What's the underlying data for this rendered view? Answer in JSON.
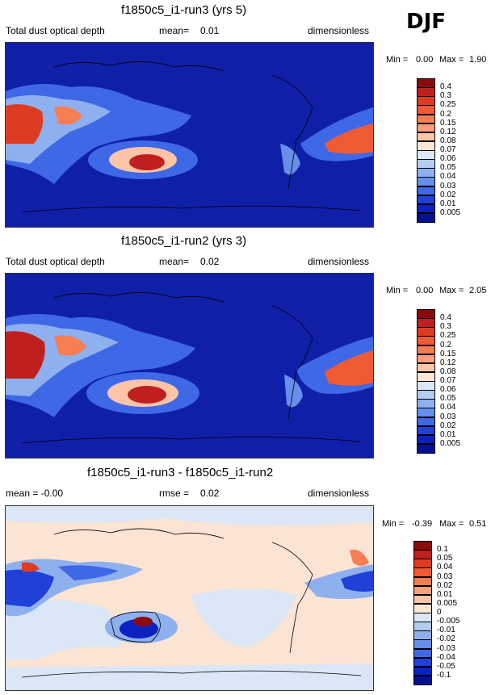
{
  "season": "DJF",
  "panels": [
    {
      "title": "f1850c5_i1-run3 (yrs 5)",
      "left_label": "Total dust optical depth",
      "mean_label": "mean=",
      "mean_value": "0.01",
      "units": "dimensionless",
      "min_label": "Min =",
      "min_value": "0.00",
      "max_label": "Max =",
      "max_value": "1.90",
      "colorbar": {
        "levels": [
          "0.4",
          "0.3",
          "0.25",
          "0.2",
          "0.15",
          "0.12",
          "0.08",
          "0.07",
          "0.06",
          "0.05",
          "0.04",
          "0.03",
          "0.02",
          "0.01",
          "0.005"
        ],
        "colors": [
          "#8b0a0a",
          "#c01f1f",
          "#de3c22",
          "#ee5b35",
          "#f57e52",
          "#fba07a",
          "#fcc5a8",
          "#fde5d6",
          "#dbe6f6",
          "#b5ccf2",
          "#8fb0ee",
          "#668eea",
          "#3f68e6",
          "#2040d8",
          "#0c22c0",
          "#041090"
        ]
      },
      "map_background": "#101fa8"
    },
    {
      "title": "f1850c5_i1-run2 (yrs 3)",
      "left_label": "Total dust optical depth",
      "mean_label": "mean=",
      "mean_value": "0.02",
      "units": "dimensionless",
      "min_label": "Min =",
      "min_value": "0.00",
      "max_label": "Max =",
      "max_value": "2.05",
      "colorbar": {
        "levels": [
          "0.4",
          "0.3",
          "0.25",
          "0.2",
          "0.15",
          "0.12",
          "0.08",
          "0.07",
          "0.06",
          "0.05",
          "0.04",
          "0.03",
          "0.02",
          "0.01",
          "0.005"
        ],
        "colors": [
          "#8b0a0a",
          "#c01f1f",
          "#de3c22",
          "#ee5b35",
          "#f57e52",
          "#fba07a",
          "#fcc5a8",
          "#fde5d6",
          "#dbe6f6",
          "#b5ccf2",
          "#8fb0ee",
          "#668eea",
          "#3f68e6",
          "#2040d8",
          "#0c22c0",
          "#041090"
        ]
      },
      "map_background": "#101fa8"
    },
    {
      "title": "f1850c5_i1-run3 - f1850c5_i1-run2",
      "left_label": "mean = -0.00",
      "mean_label": "rmse =",
      "mean_value": "0.02",
      "units": "dimensionless",
      "min_label": "Min =",
      "min_value": "-0.39",
      "max_label": "Max =",
      "max_value": "0.51",
      "colorbar": {
        "levels": [
          "0.1",
          "0.05",
          "0.04",
          "0.03",
          "0.02",
          "0.01",
          "0.005",
          "0",
          "-0.005",
          "-0.01",
          "-0.02",
          "-0.03",
          "-0.04",
          "-0.05",
          "-0.1"
        ],
        "colors": [
          "#8b0a0a",
          "#c01f1f",
          "#de3c22",
          "#ee5b35",
          "#f57e52",
          "#fba07a",
          "#fcc5a8",
          "#fde5d6",
          "#dbe6f6",
          "#b5ccf2",
          "#8fb0ee",
          "#668eea",
          "#3f68e6",
          "#2040d8",
          "#0c22c0",
          "#041090"
        ]
      },
      "map_background": "#fce4d4"
    }
  ]
}
